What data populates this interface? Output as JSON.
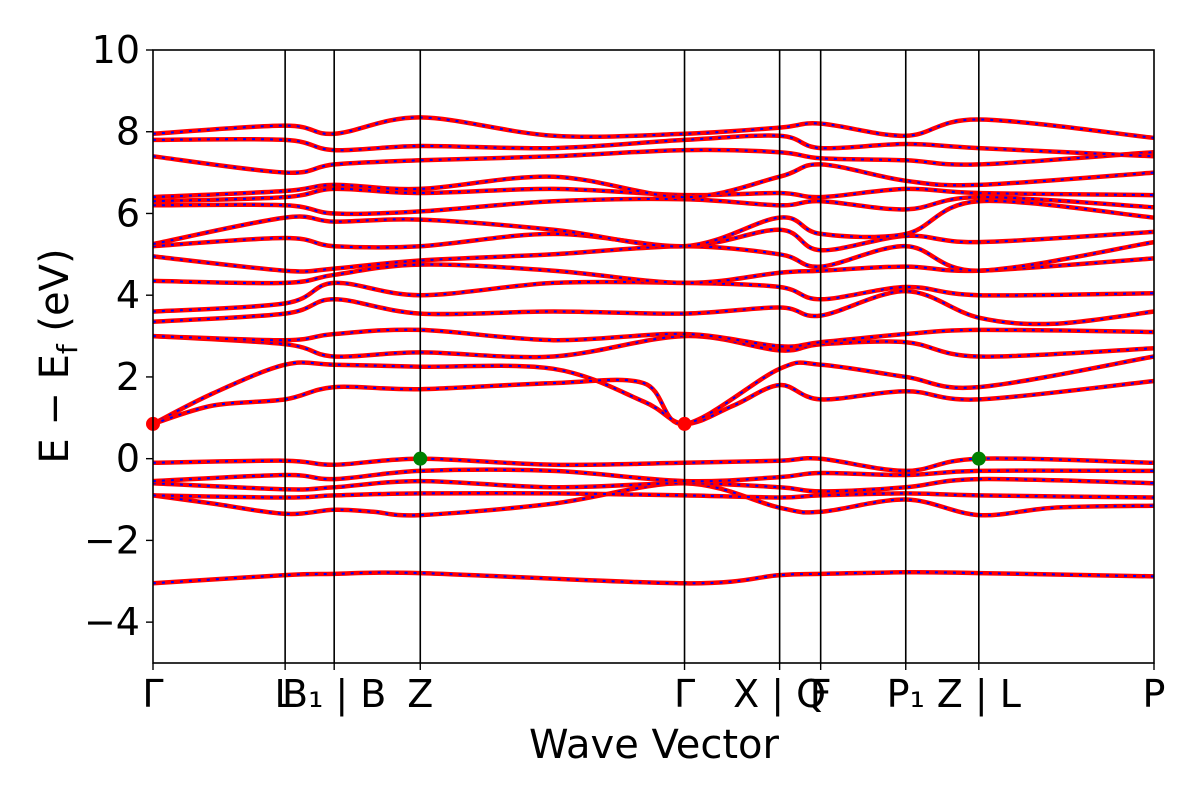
{
  "chart_data": {
    "type": "line",
    "xlabel": "Wave Vector",
    "ylabel": "E − E_f (eV)",
    "ylabel_parts": {
      "main": "E − E",
      "sub": "f",
      "unit": " (eV)"
    },
    "ylim": [
      -5,
      10
    ],
    "yticks": [
      -4,
      -2,
      0,
      2,
      4,
      6,
      8,
      10
    ],
    "ytick_labels": [
      "−4",
      "−2",
      "0",
      "2",
      "4",
      "6",
      "8",
      "10"
    ],
    "kpath": [
      {
        "label": "Γ",
        "x": 0.0
      },
      {
        "label": "L",
        "x": 0.132
      },
      {
        "label": "B₁ | B",
        "x": 0.181
      },
      {
        "label": "Z",
        "x": 0.267
      },
      {
        "label": "Γ",
        "x": 0.531
      },
      {
        "label": "X | Q",
        "x": 0.626
      },
      {
        "label": "F",
        "x": 0.667
      },
      {
        "label": "P₁",
        "x": 0.752
      },
      {
        "label": "Z | L",
        "x": 0.825
      },
      {
        "label": "P",
        "x": 1.0
      }
    ],
    "grid": false,
    "series_styles": [
      {
        "role": "solid",
        "color": "#ff0000"
      },
      {
        "role": "dashed",
        "color": "#0000ff"
      }
    ],
    "markers": [
      {
        "kind": "CBM",
        "color": "#ff0000",
        "points": [
          [
            0.0,
            0.85
          ],
          [
            0.531,
            0.85
          ]
        ]
      },
      {
        "kind": "VBM",
        "color": "#008000",
        "points": [
          [
            0.267,
            0.0
          ],
          [
            0.825,
            0.0
          ]
        ]
      }
    ],
    "bands": [
      {
        "x": [
          0,
          0.132,
          0.181,
          0.267,
          0.531,
          0.626,
          0.667,
          0.752,
          0.825,
          1.0
        ],
        "y": [
          -3.05,
          -2.85,
          -2.82,
          -2.8,
          -3.05,
          -2.85,
          -2.82,
          -2.78,
          -2.8,
          -2.88
        ]
      },
      {
        "x": [
          0,
          0.06,
          0.132,
          0.181,
          0.22,
          0.267,
          0.4,
          0.531,
          0.626,
          0.667,
          0.752,
          0.825,
          0.9,
          1.0
        ],
        "y": [
          -0.9,
          -1.1,
          -1.35,
          -1.25,
          -1.3,
          -1.38,
          -1.1,
          -0.6,
          -1.2,
          -1.3,
          -1.0,
          -1.38,
          -1.2,
          -1.15
        ]
      },
      {
        "x": [
          0,
          0.132,
          0.181,
          0.267,
          0.4,
          0.531,
          0.626,
          0.667,
          0.752,
          0.825,
          1.0
        ],
        "y": [
          -0.9,
          -0.95,
          -0.9,
          -0.85,
          -0.85,
          -0.9,
          -0.95,
          -0.9,
          -0.85,
          -0.9,
          -0.95
        ]
      },
      {
        "x": [
          0,
          0.132,
          0.181,
          0.267,
          0.4,
          0.531,
          0.626,
          0.667,
          0.752,
          0.825,
          1.0
        ],
        "y": [
          -0.6,
          -0.75,
          -0.7,
          -0.55,
          -0.7,
          -0.6,
          -0.7,
          -0.8,
          -0.7,
          -0.5,
          -0.6
        ]
      },
      {
        "x": [
          0,
          0.132,
          0.181,
          0.267,
          0.4,
          0.531,
          0.626,
          0.667,
          0.752,
          0.825,
          1.0
        ],
        "y": [
          -0.55,
          -0.4,
          -0.5,
          -0.3,
          -0.3,
          -0.55,
          -0.45,
          -0.35,
          -0.4,
          -0.3,
          -0.3
        ]
      },
      {
        "x": [
          0,
          0.132,
          0.181,
          0.267,
          0.4,
          0.531,
          0.626,
          0.667,
          0.752,
          0.825,
          1.0
        ],
        "y": [
          -0.1,
          -0.05,
          -0.15,
          0.0,
          -0.15,
          -0.1,
          -0.05,
          0.0,
          -0.3,
          0.0,
          -0.1
        ]
      },
      {
        "x": [
          0,
          0.06,
          0.132,
          0.181,
          0.267,
          0.4,
          0.49,
          0.531,
          0.58,
          0.626,
          0.667,
          0.752,
          0.825,
          1.0
        ],
        "y": [
          0.85,
          1.6,
          2.3,
          2.3,
          2.25,
          2.2,
          1.4,
          0.85,
          1.3,
          1.8,
          1.45,
          1.65,
          1.45,
          1.9
        ]
      },
      {
        "x": [
          0,
          0.06,
          0.132,
          0.181,
          0.267,
          0.4,
          0.49,
          0.531,
          0.626,
          0.667,
          0.752,
          0.825,
          1.0
        ],
        "y": [
          0.85,
          1.3,
          1.45,
          1.75,
          1.7,
          1.85,
          1.85,
          0.85,
          2.2,
          2.3,
          2.0,
          1.75,
          2.5
        ]
      },
      {
        "x": [
          0,
          0.132,
          0.181,
          0.267,
          0.4,
          0.531,
          0.626,
          0.667,
          0.752,
          0.825,
          1.0
        ],
        "y": [
          3.0,
          2.8,
          2.5,
          2.6,
          2.5,
          3.0,
          2.65,
          2.8,
          2.85,
          2.5,
          2.7
        ]
      },
      {
        "x": [
          0,
          0.132,
          0.181,
          0.267,
          0.4,
          0.531,
          0.626,
          0.667,
          0.752,
          0.825,
          1.0
        ],
        "y": [
          3.0,
          2.9,
          3.05,
          3.15,
          2.9,
          3.05,
          2.75,
          2.85,
          3.05,
          3.15,
          3.1
        ]
      },
      {
        "x": [
          0,
          0.132,
          0.181,
          0.267,
          0.4,
          0.531,
          0.626,
          0.667,
          0.752,
          0.825,
          0.9,
          1.0
        ],
        "y": [
          3.35,
          3.55,
          3.9,
          3.55,
          3.6,
          3.55,
          3.7,
          3.5,
          4.1,
          3.45,
          3.3,
          3.6
        ]
      },
      {
        "x": [
          0,
          0.132,
          0.181,
          0.267,
          0.4,
          0.531,
          0.626,
          0.667,
          0.752,
          0.825,
          1.0
        ],
        "y": [
          3.6,
          3.8,
          4.3,
          4.0,
          4.3,
          4.3,
          4.2,
          3.9,
          4.2,
          4.0,
          4.05
        ]
      },
      {
        "x": [
          0,
          0.132,
          0.181,
          0.267,
          0.4,
          0.531,
          0.626,
          0.667,
          0.752,
          0.825,
          1.0
        ],
        "y": [
          4.35,
          4.3,
          4.5,
          4.75,
          4.6,
          4.3,
          4.55,
          4.6,
          4.7,
          4.6,
          4.9
        ]
      },
      {
        "x": [
          0,
          0.132,
          0.181,
          0.267,
          0.4,
          0.531,
          0.626,
          0.667,
          0.752,
          0.825,
          1.0
        ],
        "y": [
          4.95,
          4.6,
          4.65,
          4.85,
          5.0,
          5.2,
          5.0,
          4.7,
          5.2,
          4.6,
          5.3
        ]
      },
      {
        "x": [
          0,
          0.132,
          0.181,
          0.267,
          0.4,
          0.531,
          0.626,
          0.667,
          0.752,
          0.825,
          1.0
        ],
        "y": [
          5.2,
          5.4,
          5.2,
          5.2,
          5.5,
          5.2,
          5.6,
          5.1,
          5.45,
          5.3,
          5.55
        ]
      },
      {
        "x": [
          0,
          0.132,
          0.181,
          0.267,
          0.4,
          0.531,
          0.626,
          0.667,
          0.752,
          0.825,
          1.0
        ],
        "y": [
          5.25,
          5.9,
          5.8,
          5.85,
          5.6,
          5.2,
          5.9,
          5.5,
          5.5,
          6.3,
          5.9
        ]
      },
      {
        "x": [
          0,
          0.132,
          0.181,
          0.267,
          0.4,
          0.531,
          0.626,
          0.667,
          0.752,
          0.825,
          1.0
        ],
        "y": [
          6.2,
          6.2,
          6.0,
          6.05,
          6.3,
          6.35,
          6.2,
          6.3,
          6.1,
          6.4,
          6.15
        ]
      },
      {
        "x": [
          0,
          0.132,
          0.181,
          0.267,
          0.4,
          0.531,
          0.626,
          0.667,
          0.752,
          0.825,
          1.0
        ],
        "y": [
          6.3,
          6.4,
          6.6,
          6.5,
          6.6,
          6.45,
          6.5,
          6.4,
          6.6,
          6.5,
          6.45
        ]
      },
      {
        "x": [
          0,
          0.132,
          0.181,
          0.267,
          0.4,
          0.531,
          0.626,
          0.667,
          0.752,
          0.825,
          1.0
        ],
        "y": [
          6.4,
          6.55,
          6.7,
          6.6,
          6.9,
          6.4,
          6.9,
          7.2,
          6.8,
          6.7,
          7.0
        ]
      },
      {
        "x": [
          0,
          0.132,
          0.181,
          0.267,
          0.4,
          0.531,
          0.626,
          0.667,
          0.752,
          0.825,
          1.0
        ],
        "y": [
          7.4,
          7.0,
          7.2,
          7.3,
          7.4,
          7.55,
          7.5,
          7.35,
          7.3,
          7.2,
          7.5
        ]
      },
      {
        "x": [
          0,
          0.132,
          0.181,
          0.267,
          0.4,
          0.531,
          0.626,
          0.667,
          0.752,
          0.825,
          1.0
        ],
        "y": [
          7.8,
          7.8,
          7.55,
          7.65,
          7.6,
          7.8,
          7.9,
          7.6,
          7.7,
          7.6,
          7.4
        ]
      },
      {
        "x": [
          0,
          0.132,
          0.181,
          0.267,
          0.4,
          0.531,
          0.626,
          0.667,
          0.752,
          0.825,
          1.0
        ],
        "y": [
          7.95,
          8.15,
          7.95,
          8.35,
          7.9,
          7.95,
          8.1,
          8.2,
          7.9,
          8.3,
          7.85
        ]
      }
    ]
  }
}
